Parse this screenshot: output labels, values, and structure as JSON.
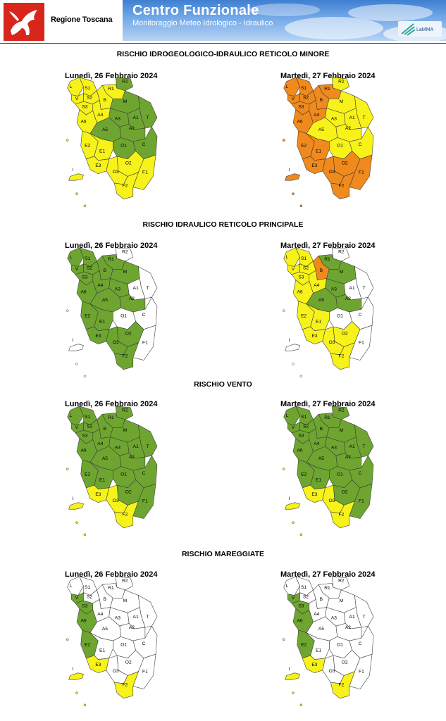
{
  "header": {
    "region": "Regione Toscana",
    "title": "Centro Funzionale",
    "subtitle": "Monitoraggio Meteo Idrologico - Idraulico",
    "partner": "LaMMA"
  },
  "colors": {
    "green": "#6ea530",
    "yellow": "#f7f21a",
    "orange": "#f08a1c",
    "white": "#ffffff"
  },
  "zone_labels": {
    "L": "L",
    "S1": "S1",
    "V": "V",
    "R1": "R1",
    "R2": "R2",
    "S2": "S2",
    "S3": "S3",
    "B": "B",
    "M": "M",
    "A4": "A4",
    "A3": "A3",
    "A1": "A1",
    "T": "T",
    "A2": "A2",
    "A6": "A6",
    "A5": "A5",
    "C": "C",
    "O1": "O1",
    "E2": "E2",
    "E1": "E1",
    "I": "I",
    "E3": "E3",
    "O2": "O2",
    "O3": "O3",
    "F2": "F2",
    "F1": "F1"
  },
  "sections": [
    {
      "title": "RISCHIO IDROGEOLOGICO-IDRAULICO RETICOLO MINORE",
      "days": [
        {
          "date": "Lunedì, 26 Febbraio 2024",
          "zones": {
            "L": "yellow",
            "S1": "yellow",
            "V": "yellow",
            "R1": "yellow",
            "R2": "green",
            "S2": "yellow",
            "S3": "yellow",
            "B": "yellow",
            "M": "green",
            "A4": "yellow",
            "A3": "green",
            "A1": "green",
            "T": "green",
            "A2": "green",
            "A6": "yellow",
            "A5": "green",
            "C": "green",
            "O1": "green",
            "E2": "yellow",
            "E1": "yellow",
            "I": "yellow",
            "E3": "yellow",
            "O2": "yellow",
            "O3": "yellow",
            "F2": "yellow",
            "F1": "yellow"
          }
        },
        {
          "date": "Martedì, 27 Febbraio 2024",
          "zones": {
            "L": "orange",
            "S1": "orange",
            "V": "orange",
            "R1": "orange",
            "R2": "yellow",
            "S2": "orange",
            "S3": "orange",
            "B": "orange",
            "M": "yellow",
            "A4": "orange",
            "A3": "yellow",
            "A1": "yellow",
            "T": "yellow",
            "A2": "yellow",
            "A6": "orange",
            "A5": "yellow",
            "C": "yellow",
            "O1": "yellow",
            "E2": "orange",
            "E1": "orange",
            "I": "orange",
            "E3": "orange",
            "O2": "orange",
            "O3": "orange",
            "F2": "orange",
            "F1": "orange"
          }
        }
      ]
    },
    {
      "title": "RISCHIO IDRAULICO RETICOLO PRINCIPALE",
      "days": [
        {
          "date": "Lunedì, 26 Febbraio 2024",
          "zones": {
            "L": "green",
            "S1": "green",
            "V": "green",
            "R1": "green",
            "R2": "white",
            "S2": "green",
            "S3": "green",
            "B": "green",
            "M": "green",
            "A4": "green",
            "A3": "green",
            "A1": "white",
            "T": "white",
            "A2": "green",
            "A6": "green",
            "A5": "green",
            "C": "white",
            "O1": "white",
            "E2": "green",
            "E1": "green",
            "I": "white",
            "E3": "green",
            "O2": "green",
            "O3": "green",
            "F2": "green",
            "F1": "white"
          }
        },
        {
          "date": "Martedì, 27 Febbraio 2024",
          "zones": {
            "L": "yellow",
            "S1": "yellow",
            "V": "yellow",
            "R1": "green",
            "R2": "white",
            "S2": "yellow",
            "S3": "yellow",
            "B": "orange",
            "M": "green",
            "A4": "yellow",
            "A3": "green",
            "A1": "white",
            "T": "white",
            "A2": "green",
            "A6": "yellow",
            "A5": "green",
            "C": "white",
            "O1": "white",
            "E2": "yellow",
            "E1": "yellow",
            "I": "white",
            "E3": "yellow",
            "O2": "yellow",
            "O3": "yellow",
            "F2": "yellow",
            "F1": "white"
          }
        }
      ]
    },
    {
      "title": "RISCHIO VENTO",
      "days": [
        {
          "date": "Lunedì, 26 Febbraio 2024",
          "zones": {
            "L": "green",
            "S1": "green",
            "V": "green",
            "R1": "green",
            "R2": "green",
            "S2": "green",
            "S3": "green",
            "B": "green",
            "M": "green",
            "A4": "green",
            "A3": "green",
            "A1": "green",
            "T": "green",
            "A2": "green",
            "A6": "green",
            "A5": "green",
            "C": "green",
            "O1": "green",
            "E2": "green",
            "E1": "green",
            "I": "yellow",
            "E3": "yellow",
            "O2": "green",
            "O3": "yellow",
            "F2": "yellow",
            "F1": "green"
          }
        },
        {
          "date": "Martedì, 27 Febbraio 2024",
          "zones": {
            "L": "green",
            "S1": "green",
            "V": "green",
            "R1": "green",
            "R2": "green",
            "S2": "green",
            "S3": "green",
            "B": "green",
            "M": "green",
            "A4": "green",
            "A3": "green",
            "A1": "green",
            "T": "green",
            "A2": "green",
            "A6": "green",
            "A5": "green",
            "C": "green",
            "O1": "green",
            "E2": "green",
            "E1": "green",
            "I": "yellow",
            "E3": "yellow",
            "O2": "green",
            "O3": "yellow",
            "F2": "yellow",
            "F1": "green"
          }
        }
      ]
    },
    {
      "title": "RISCHIO MAREGGIATE",
      "days": [
        {
          "date": "Lunedì, 26 Febbraio 2024",
          "zones": {
            "L": "white",
            "S1": "white",
            "V": "green",
            "R1": "white",
            "R2": "white",
            "S2": "white",
            "S3": "green",
            "B": "white",
            "M": "white",
            "A4": "white",
            "A3": "white",
            "A1": "white",
            "T": "white",
            "A2": "white",
            "A6": "green",
            "A5": "white",
            "C": "white",
            "O1": "white",
            "E2": "green",
            "E1": "white",
            "I": "yellow",
            "E3": "yellow",
            "O2": "white",
            "O3": "white",
            "F2": "yellow",
            "F1": "white"
          }
        },
        {
          "date": "Martedì, 27 Febbraio 2024",
          "zones": {
            "L": "white",
            "S1": "white",
            "V": "green",
            "R1": "white",
            "R2": "white",
            "S2": "white",
            "S3": "green",
            "B": "white",
            "M": "white",
            "A4": "white",
            "A3": "white",
            "A1": "white",
            "T": "white",
            "A2": "white",
            "A6": "green",
            "A5": "white",
            "C": "white",
            "O1": "white",
            "E2": "green",
            "E1": "white",
            "I": "yellow",
            "E3": "yellow",
            "O2": "white",
            "O3": "white",
            "F2": "yellow",
            "F1": "white"
          }
        }
      ]
    }
  ]
}
